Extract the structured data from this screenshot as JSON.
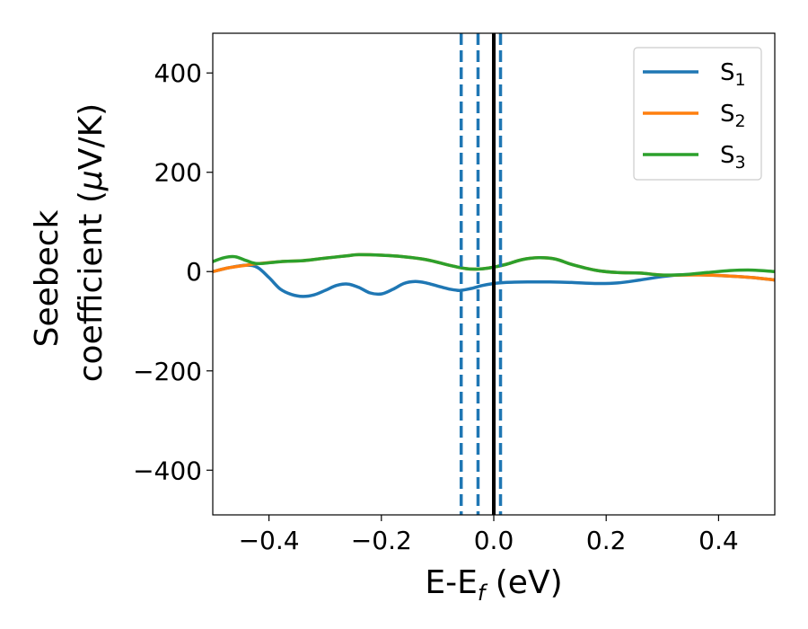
{
  "chart_data": {
    "type": "line",
    "xlabel": {
      "main": "E-E",
      "sub": "f",
      "rest": " (eV)"
    },
    "ylabel": {
      "line1": "Seebeck",
      "line2_pre": "coefficient  (",
      "line2_mu": "μ",
      "line2_post": "V/K)"
    },
    "xlim": [
      -0.5,
      0.5
    ],
    "ylim": [
      -490,
      480
    ],
    "xticks": [
      -0.4,
      -0.2,
      0.0,
      0.2,
      0.4
    ],
    "xtick_labels": [
      "−0.4",
      "−0.2",
      "0.0",
      "0.2",
      "0.4"
    ],
    "yticks": [
      -400,
      -200,
      0,
      200,
      400
    ],
    "ytick_labels": [
      "−400",
      "−200",
      "0",
      "200",
      "400"
    ],
    "legend_position": "top-right",
    "grid": false,
    "series": [
      {
        "name": "S",
        "subscript": "1",
        "color": "#1f77b4",
        "points": [
          [
            -0.5,
            0
          ],
          [
            -0.47,
            8
          ],
          [
            -0.44,
            13
          ],
          [
            -0.42,
            8
          ],
          [
            -0.4,
            -12
          ],
          [
            -0.38,
            -35
          ],
          [
            -0.36,
            -46
          ],
          [
            -0.34,
            -50
          ],
          [
            -0.32,
            -47
          ],
          [
            -0.3,
            -38
          ],
          [
            -0.28,
            -28
          ],
          [
            -0.26,
            -25
          ],
          [
            -0.24,
            -32
          ],
          [
            -0.22,
            -43
          ],
          [
            -0.2,
            -45
          ],
          [
            -0.18,
            -36
          ],
          [
            -0.16,
            -24
          ],
          [
            -0.14,
            -20
          ],
          [
            -0.12,
            -23
          ],
          [
            -0.1,
            -29
          ],
          [
            -0.08,
            -35
          ],
          [
            -0.06,
            -38
          ],
          [
            -0.04,
            -34
          ],
          [
            -0.02,
            -28
          ],
          [
            0.0,
            -24
          ],
          [
            0.02,
            -22
          ],
          [
            0.06,
            -21
          ],
          [
            0.1,
            -21
          ],
          [
            0.14,
            -22
          ],
          [
            0.18,
            -24
          ],
          [
            0.22,
            -23
          ],
          [
            0.26,
            -17
          ],
          [
            0.3,
            -10
          ],
          [
            0.34,
            -6
          ],
          [
            0.38,
            -7
          ],
          [
            0.42,
            -9
          ],
          [
            0.46,
            -12
          ],
          [
            0.5,
            -17
          ]
        ]
      },
      {
        "name": "S",
        "subscript": "2",
        "color": "#ff7f0e",
        "points": [
          [
            -0.5,
            0
          ],
          [
            -0.47,
            8
          ],
          [
            -0.44,
            13
          ],
          [
            -0.42,
            16
          ],
          [
            -0.38,
            20
          ],
          [
            -0.34,
            22
          ],
          [
            -0.3,
            27
          ],
          [
            -0.26,
            32
          ],
          [
            -0.24,
            34
          ],
          [
            -0.2,
            33
          ],
          [
            -0.16,
            30
          ],
          [
            -0.12,
            24
          ],
          [
            -0.08,
            13
          ],
          [
            -0.05,
            6
          ],
          [
            -0.03,
            5
          ],
          [
            -0.01,
            7
          ],
          [
            0.02,
            14
          ],
          [
            0.05,
            24
          ],
          [
            0.08,
            28
          ],
          [
            0.11,
            25
          ],
          [
            0.14,
            14
          ],
          [
            0.18,
            3
          ],
          [
            0.22,
            -2
          ],
          [
            0.26,
            -3
          ],
          [
            0.3,
            -7
          ],
          [
            0.34,
            -7
          ],
          [
            0.38,
            -7
          ],
          [
            0.42,
            -9
          ],
          [
            0.46,
            -12
          ],
          [
            0.5,
            -17
          ]
        ]
      },
      {
        "name": "S",
        "subscript": "3",
        "color": "#2ca02c",
        "points": [
          [
            -0.5,
            20
          ],
          [
            -0.48,
            28
          ],
          [
            -0.46,
            30
          ],
          [
            -0.44,
            22
          ],
          [
            -0.42,
            16
          ],
          [
            -0.38,
            20
          ],
          [
            -0.34,
            22
          ],
          [
            -0.3,
            27
          ],
          [
            -0.26,
            32
          ],
          [
            -0.24,
            34
          ],
          [
            -0.2,
            33
          ],
          [
            -0.16,
            30
          ],
          [
            -0.12,
            24
          ],
          [
            -0.08,
            13
          ],
          [
            -0.05,
            6
          ],
          [
            -0.03,
            5
          ],
          [
            -0.01,
            7
          ],
          [
            0.02,
            14
          ],
          [
            0.05,
            24
          ],
          [
            0.08,
            28
          ],
          [
            0.11,
            25
          ],
          [
            0.14,
            14
          ],
          [
            0.18,
            3
          ],
          [
            0.22,
            -2
          ],
          [
            0.26,
            -3
          ],
          [
            0.3,
            -7
          ],
          [
            0.34,
            -6
          ],
          [
            0.38,
            -2
          ],
          [
            0.42,
            2
          ],
          [
            0.46,
            3
          ],
          [
            0.5,
            0
          ]
        ]
      }
    ],
    "vlines": [
      {
        "x": -0.058,
        "style": "dashed",
        "color": "#1f77b4"
      },
      {
        "x": -0.028,
        "style": "dashed",
        "color": "#1f77b4"
      },
      {
        "x": 0.012,
        "style": "dashed",
        "color": "#1f77b4"
      },
      {
        "x": 0.0,
        "style": "solid",
        "color": "#000000"
      }
    ]
  }
}
